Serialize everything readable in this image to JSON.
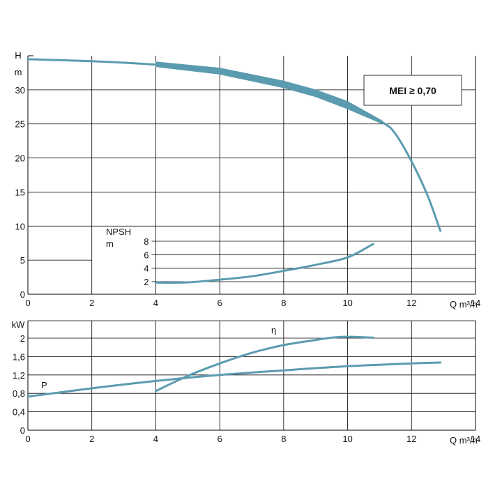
{
  "chart_data": [
    {
      "type": "line",
      "title": "",
      "ylabel": "H",
      "yunit": "m",
      "xlabel": "Q m³/h",
      "xlim": [
        0,
        14
      ],
      "ylim": [
        0,
        35
      ],
      "xticks": [
        0,
        2,
        4,
        6,
        8,
        10,
        12,
        14
      ],
      "yticks": [
        0,
        5,
        10,
        15,
        20,
        25,
        30
      ],
      "grid": true,
      "series_color": "#5b9bb0",
      "badge": "MEI ≥ 0,70",
      "series": [
        {
          "name": "",
          "points": [
            [
              0,
              34.5
            ],
            [
              2,
              34.2
            ],
            [
              4,
              33.7
            ],
            [
              5,
              33.3
            ],
            [
              6,
              32.7
            ],
            [
              7,
              31.9
            ],
            [
              8,
              30.8
            ],
            [
              9,
              29.5
            ],
            [
              10,
              27.8
            ],
            [
              11.1,
              25.2
            ],
            [
              11.5,
              23.5
            ],
            [
              12,
              19.5
            ],
            [
              12.5,
              14.5
            ],
            [
              12.9,
              9.3
            ]
          ]
        }
      ],
      "band": {
        "upper": [
          [
            4,
            34.1
          ],
          [
            6,
            33.2
          ],
          [
            8,
            31.3
          ],
          [
            9,
            30.0
          ],
          [
            10,
            28.3
          ],
          [
            11.1,
            25.4
          ]
        ],
        "lower": [
          [
            4,
            33.4
          ],
          [
            6,
            32.3
          ],
          [
            8,
            30.3
          ],
          [
            9,
            29.0
          ],
          [
            10,
            27.2
          ],
          [
            11.1,
            25.0
          ]
        ]
      },
      "npsh": {
        "label": "NPSH",
        "unit": "m",
        "ylim": [
          0,
          8
        ],
        "yticks": [
          2,
          4,
          6,
          8
        ],
        "points": [
          [
            4,
            1.85
          ],
          [
            5,
            1.9
          ],
          [
            6,
            2.3
          ],
          [
            7,
            2.8
          ],
          [
            8,
            3.6
          ],
          [
            9,
            4.5
          ],
          [
            10,
            5.6
          ],
          [
            10.8,
            7.6
          ]
        ]
      }
    },
    {
      "type": "line",
      "ylabel": "kW",
      "xlabel": "Q m³/h",
      "xlim": [
        0,
        14
      ],
      "ylim": [
        0,
        2.4
      ],
      "xticks": [
        0,
        2,
        4,
        6,
        8,
        10,
        12,
        14
      ],
      "yticks": [
        0,
        0.4,
        0.8,
        1.2,
        1.6,
        2
      ],
      "ytick_labels": [
        "0",
        "0,4",
        "0,8",
        "1,2",
        "1,6",
        "2"
      ],
      "grid": true,
      "series_color": "#5b9bb0",
      "series": [
        {
          "name": "P",
          "points": [
            [
              0,
              0.73
            ],
            [
              2,
              0.91
            ],
            [
              4,
              1.07
            ],
            [
              6,
              1.2
            ],
            [
              8,
              1.3
            ],
            [
              10,
              1.39
            ],
            [
              12,
              1.45
            ],
            [
              12.9,
              1.47
            ]
          ]
        },
        {
          "name": "η",
          "points": [
            [
              4,
              0.85
            ],
            [
              5,
              1.18
            ],
            [
              6,
              1.45
            ],
            [
              7,
              1.68
            ],
            [
              8,
              1.85
            ],
            [
              9,
              1.96
            ],
            [
              9.5,
              2.01
            ],
            [
              10,
              2.03
            ],
            [
              10.8,
              2.01
            ]
          ]
        }
      ]
    }
  ]
}
